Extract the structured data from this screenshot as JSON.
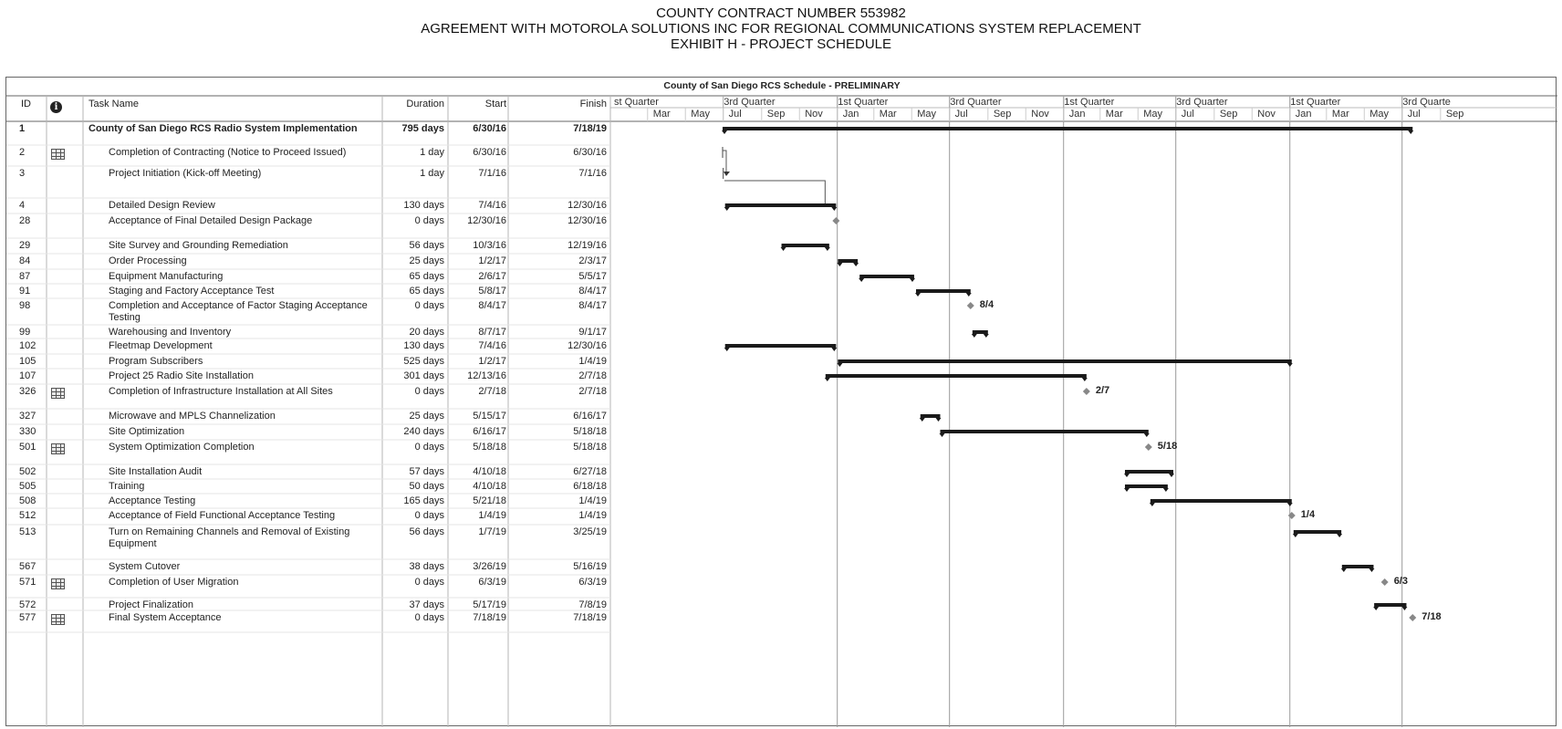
{
  "header": {
    "line1": "COUNTY CONTRACT NUMBER 553982",
    "line2": "AGREEMENT WITH MOTOROLA SOLUTIONS INC FOR REGIONAL COMMUNICATIONS SYSTEM REPLACEMENT",
    "line3": "EXHIBIT H - PROJECT SCHEDULE"
  },
  "sheet_title": "County of San Diego RCS Schedule  - PRELIMINARY",
  "columns": {
    "id": "ID",
    "info_icon": "info-icon",
    "task_name": "Task Name",
    "duration": "Duration",
    "start": "Start",
    "finish": "Finish"
  },
  "timeline": {
    "quarters": [
      "st Quarter",
      "3rd Quarter",
      "1st Quarter",
      "3rd Quarter",
      "1st Quarter",
      "3rd Quarter",
      "1st Quarter",
      "3rd Quarte"
    ],
    "months": [
      "Mar",
      "May",
      "Jul",
      "Sep",
      "Nov",
      "Jan",
      "Mar",
      "May",
      "Jul",
      "Sep",
      "Nov",
      "Jan",
      "Mar",
      "May",
      "Jul",
      "Sep",
      "Nov",
      "Jan",
      "Mar",
      "May",
      "Jul",
      "Sep"
    ]
  },
  "tasks": [
    {
      "id": "1",
      "name": "County of San Diego RCS Radio System Implementation",
      "duration": "795 days",
      "start": "6/30/16",
      "finish": "7/18/19",
      "summary": true,
      "icon": ""
    },
    {
      "id": "2",
      "name": "Completion of Contracting (Notice to Proceed Issued)",
      "duration": "1 day",
      "start": "6/30/16",
      "finish": "6/30/16",
      "icon": "calendar-icon"
    },
    {
      "id": "3",
      "name": "Project Initiation (Kick-off Meeting)",
      "duration": "1 day",
      "start": "7/1/16",
      "finish": "7/1/16",
      "icon": ""
    },
    {
      "id": "4",
      "name": "Detailed Design Review",
      "duration": "130 days",
      "start": "7/4/16",
      "finish": "12/30/16",
      "icon": ""
    },
    {
      "id": "28",
      "name": "Acceptance of Final Detailed Design Package",
      "duration": "0 days",
      "start": "12/30/16",
      "finish": "12/30/16",
      "icon": ""
    },
    {
      "id": "29",
      "name": "Site Survey and Grounding Remediation",
      "duration": "56 days",
      "start": "10/3/16",
      "finish": "12/19/16",
      "icon": ""
    },
    {
      "id": "84",
      "name": "Order Processing",
      "duration": "25 days",
      "start": "1/2/17",
      "finish": "2/3/17",
      "icon": ""
    },
    {
      "id": "87",
      "name": "Equipment Manufacturing",
      "duration": "65 days",
      "start": "2/6/17",
      "finish": "5/5/17",
      "icon": ""
    },
    {
      "id": "91",
      "name": "Staging and Factory Acceptance Test",
      "duration": "65 days",
      "start": "5/8/17",
      "finish": "8/4/17",
      "icon": ""
    },
    {
      "id": "98",
      "name": "Completion and Acceptance of Factor Staging Acceptance Testing",
      "duration": "0 days",
      "start": "8/4/17",
      "finish": "8/4/17",
      "icon": "",
      "ms_label": "8/4"
    },
    {
      "id": "99",
      "name": "Warehousing and Inventory",
      "duration": "20 days",
      "start": "8/7/17",
      "finish": "9/1/17",
      "icon": ""
    },
    {
      "id": "102",
      "name": "Fleetmap Development",
      "duration": "130 days",
      "start": "7/4/16",
      "finish": "12/30/16",
      "icon": ""
    },
    {
      "id": "105",
      "name": "Program Subscribers",
      "duration": "525 days",
      "start": "1/2/17",
      "finish": "1/4/19",
      "icon": ""
    },
    {
      "id": "107",
      "name": "Project 25 Radio Site Installation",
      "duration": "301 days",
      "start": "12/13/16",
      "finish": "2/7/18",
      "icon": ""
    },
    {
      "id": "326",
      "name": "Completion of Infrastructure Installation at All Sites",
      "duration": "0 days",
      "start": "2/7/18",
      "finish": "2/7/18",
      "icon": "calendar-icon",
      "ms_label": "2/7"
    },
    {
      "id": "327",
      "name": "Microwave and MPLS Channelization",
      "duration": "25 days",
      "start": "5/15/17",
      "finish": "6/16/17",
      "icon": ""
    },
    {
      "id": "330",
      "name": "Site Optimization",
      "duration": "240 days",
      "start": "6/16/17",
      "finish": "5/18/18",
      "icon": ""
    },
    {
      "id": "501",
      "name": "System Optimization Completion",
      "duration": "0 days",
      "start": "5/18/18",
      "finish": "5/18/18",
      "icon": "calendar-icon",
      "ms_label": "5/18"
    },
    {
      "id": "502",
      "name": "Site Installation Audit",
      "duration": "57 days",
      "start": "4/10/18",
      "finish": "6/27/18",
      "icon": ""
    },
    {
      "id": "505",
      "name": "Training",
      "duration": "50 days",
      "start": "4/10/18",
      "finish": "6/18/18",
      "icon": ""
    },
    {
      "id": "508",
      "name": "Acceptance Testing",
      "duration": "165 days",
      "start": "5/21/18",
      "finish": "1/4/19",
      "icon": ""
    },
    {
      "id": "512",
      "name": "Acceptance of Field Functional Acceptance Testing",
      "duration": "0 days",
      "start": "1/4/19",
      "finish": "1/4/19",
      "icon": "",
      "ms_label": "1/4"
    },
    {
      "id": "513",
      "name": "Turn on Remaining Channels and Removal of Existing Equipment",
      "duration": "56 days",
      "start": "1/7/19",
      "finish": "3/25/19",
      "icon": ""
    },
    {
      "id": "567",
      "name": "System Cutover",
      "duration": "38 days",
      "start": "3/26/19",
      "finish": "5/16/19",
      "icon": ""
    },
    {
      "id": "571",
      "name": "Completion of User Migration",
      "duration": "0 days",
      "start": "6/3/19",
      "finish": "6/3/19",
      "icon": "calendar-icon",
      "ms_label": "6/3"
    },
    {
      "id": "572",
      "name": "Project Finalization",
      "duration": "37 days",
      "start": "5/17/19",
      "finish": "7/8/19",
      "icon": ""
    },
    {
      "id": "577",
      "name": "Final System Acceptance",
      "duration": "0 days",
      "start": "7/18/19",
      "finish": "7/18/19",
      "icon": "calendar-icon",
      "ms_label": "7/18"
    }
  ],
  "colors": {
    "bar": "#1a1a1a",
    "milestone": "#888888",
    "grid": "#9a9a9a",
    "border": "#666666"
  }
}
